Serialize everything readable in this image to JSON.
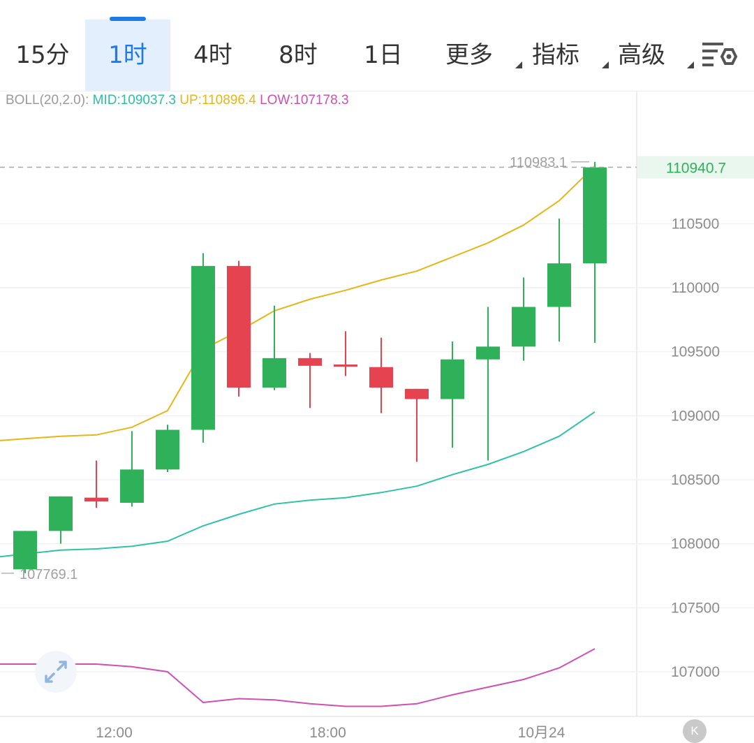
{
  "tabs": [
    {
      "label": "15分",
      "active": false,
      "caret": false
    },
    {
      "label": "1时",
      "active": true,
      "caret": false
    },
    {
      "label": "4时",
      "active": false,
      "caret": false
    },
    {
      "label": "8时",
      "active": false,
      "caret": false
    },
    {
      "label": "1日",
      "active": false,
      "caret": false
    },
    {
      "label": "更多",
      "active": false,
      "caret": true
    },
    {
      "label": "指标",
      "active": false,
      "caret": true
    },
    {
      "label": "高级",
      "active": false,
      "caret": true
    }
  ],
  "icons": {
    "settings": "chart-settings-icon",
    "expand": "expand-arrows-icon",
    "k_button": "k-line-icon"
  },
  "k_button_label": "K",
  "indicator": {
    "name": "BOLL(20,2.0):",
    "mid": "MID:109037.3",
    "up": "UP:110896.4",
    "low": "LOW:107178.3"
  },
  "colors": {
    "up_candle": "#2fb15a",
    "down_candle": "#e5434f",
    "mid_line": "#2fc2a7",
    "up_line": "#e6b617",
    "low_line": "#cf4fb3",
    "last_price_bg": "#e9f7ee",
    "last_price_text": "#2fb15a"
  },
  "chart_data": {
    "type": "candlestick",
    "y_ticks": [
      107000,
      107500,
      108000,
      108500,
      109000,
      109500,
      110000,
      110500
    ],
    "x_ticks": [
      {
        "label": "12:00",
        "index": 2.5
      },
      {
        "label": "18:00",
        "index": 8.5
      },
      {
        "label": "10月24",
        "index": 14.5
      }
    ],
    "high_marker": "110983.1",
    "low_marker": "107769.1",
    "last_price": 110940.7,
    "last_price_label": "110940.7",
    "candles": [
      {
        "o": 107800,
        "h": 108100,
        "l": 107770,
        "c": 108100
      },
      {
        "o": 108100,
        "h": 108370,
        "l": 108000,
        "c": 108370
      },
      {
        "o": 108360,
        "h": 108650,
        "l": 108280,
        "c": 108330
      },
      {
        "o": 108320,
        "h": 108880,
        "l": 108290,
        "c": 108580
      },
      {
        "o": 108580,
        "h": 108930,
        "l": 108560,
        "c": 108890
      },
      {
        "o": 108890,
        "h": 110270,
        "l": 108790,
        "c": 110170
      },
      {
        "o": 110170,
        "h": 110210,
        "l": 109150,
        "c": 109220
      },
      {
        "o": 109220,
        "h": 109860,
        "l": 109200,
        "c": 109450
      },
      {
        "o": 109450,
        "h": 109490,
        "l": 109060,
        "c": 109390
      },
      {
        "o": 109400,
        "h": 109660,
        "l": 109310,
        "c": 109390
      },
      {
        "o": 109380,
        "h": 109610,
        "l": 109020,
        "c": 109220
      },
      {
        "o": 109210,
        "h": 109210,
        "l": 108640,
        "c": 109130
      },
      {
        "o": 109130,
        "h": 109580,
        "l": 108750,
        "c": 109440
      },
      {
        "o": 109440,
        "h": 109850,
        "l": 108650,
        "c": 109540
      },
      {
        "o": 109540,
        "h": 110080,
        "l": 109430,
        "c": 109850
      },
      {
        "o": 109850,
        "h": 110540,
        "l": 109580,
        "c": 110190
      },
      {
        "o": 110190,
        "h": 110983,
        "l": 109570,
        "c": 110940
      }
    ],
    "boll_up": [
      108820,
      108840,
      108850,
      108910,
      109040,
      109520,
      109660,
      109820,
      109910,
      109980,
      110060,
      110130,
      110240,
      110350,
      110490,
      110680,
      110950
    ],
    "boll_mid": [
      107920,
      107950,
      107960,
      107980,
      108020,
      108140,
      108230,
      108310,
      108340,
      108360,
      108400,
      108450,
      108540,
      108620,
      108720,
      108840,
      109030
    ],
    "boll_low": [
      107060,
      107060,
      107060,
      107040,
      107000,
      106760,
      106790,
      106780,
      106750,
      106730,
      106730,
      106750,
      106820,
      106880,
      106940,
      107030,
      107180
    ]
  }
}
